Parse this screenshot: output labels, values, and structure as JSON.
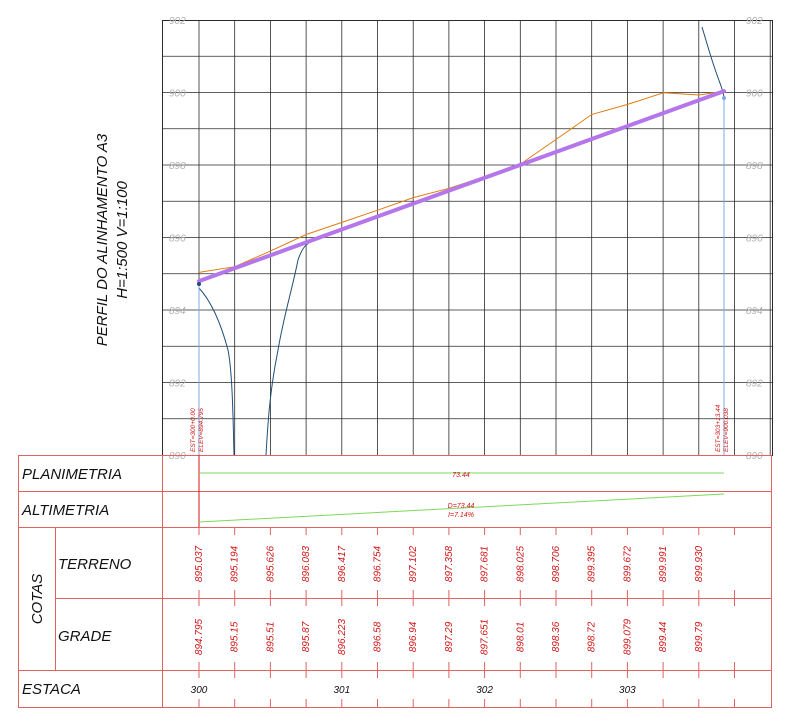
{
  "title": {
    "line1": "PERFIL DO ALINHAMENTO A3",
    "line2": "H=1:500 V=1:100"
  },
  "elevation_ticks": [
    "902",
    "900",
    "898",
    "896",
    "894",
    "892",
    "890"
  ],
  "stations": {
    "start_label": "EST=300+0.00",
    "start_elev": "ELEV=894.795",
    "end_label": "EST=303+13.44",
    "end_elev": "ELEV=900.038"
  },
  "rows": {
    "planimetria": "PLANIMETRIA",
    "altimetria": "ALTIMETRIA",
    "cotas": "COTAS",
    "terreno": "TERRENO",
    "grade": "GRADE",
    "estaca": "ESTACA"
  },
  "planimetria_value": "73.44",
  "altimetria_values": {
    "d": "D=73.44",
    "i": "I=7.14%"
  },
  "terreno_values": [
    "895.037",
    "895.194",
    "895.626",
    "896.083",
    "896.417",
    "896.754",
    "897.102",
    "897.358",
    "897.681",
    "898.025",
    "898.706",
    "899.395",
    "899.672",
    "899.991",
    "899.930"
  ],
  "grade_values": [
    "894.795",
    "895.15",
    "895.51",
    "895.87",
    "896.223",
    "896.58",
    "896.94",
    "897.29",
    "897.651",
    "898.01",
    "898.36",
    "898.72",
    "899.079",
    "899.44",
    "899.79"
  ],
  "estaca_labels": [
    "300",
    "301",
    "302",
    "303"
  ],
  "chart_data": {
    "type": "line",
    "x_unit": "station_m",
    "ylim": [
      890,
      902
    ],
    "series": [
      {
        "x": [
          0,
          5,
          10,
          15,
          20,
          25,
          30,
          35,
          40,
          45,
          50,
          55,
          60,
          65,
          70
        ],
        "values": [
          895.037,
          895.194,
          895.626,
          896.083,
          896.417,
          896.754,
          897.102,
          897.358,
          897.681,
          898.025,
          898.706,
          899.395,
          899.672,
          899.991,
          899.93
        ]
      },
      {
        "x": [
          0,
          73.44
        ],
        "values": [
          894.795,
          900.038
        ]
      }
    ]
  },
  "colors": {
    "grid": "#2a2a2a",
    "border": "#e06262",
    "terrain": "#e07c10",
    "grade": "#b476ea",
    "section": "#1f4e78",
    "marker": "#7fa9dc",
    "green": "#7ed957",
    "red_text": "#d01414"
  }
}
